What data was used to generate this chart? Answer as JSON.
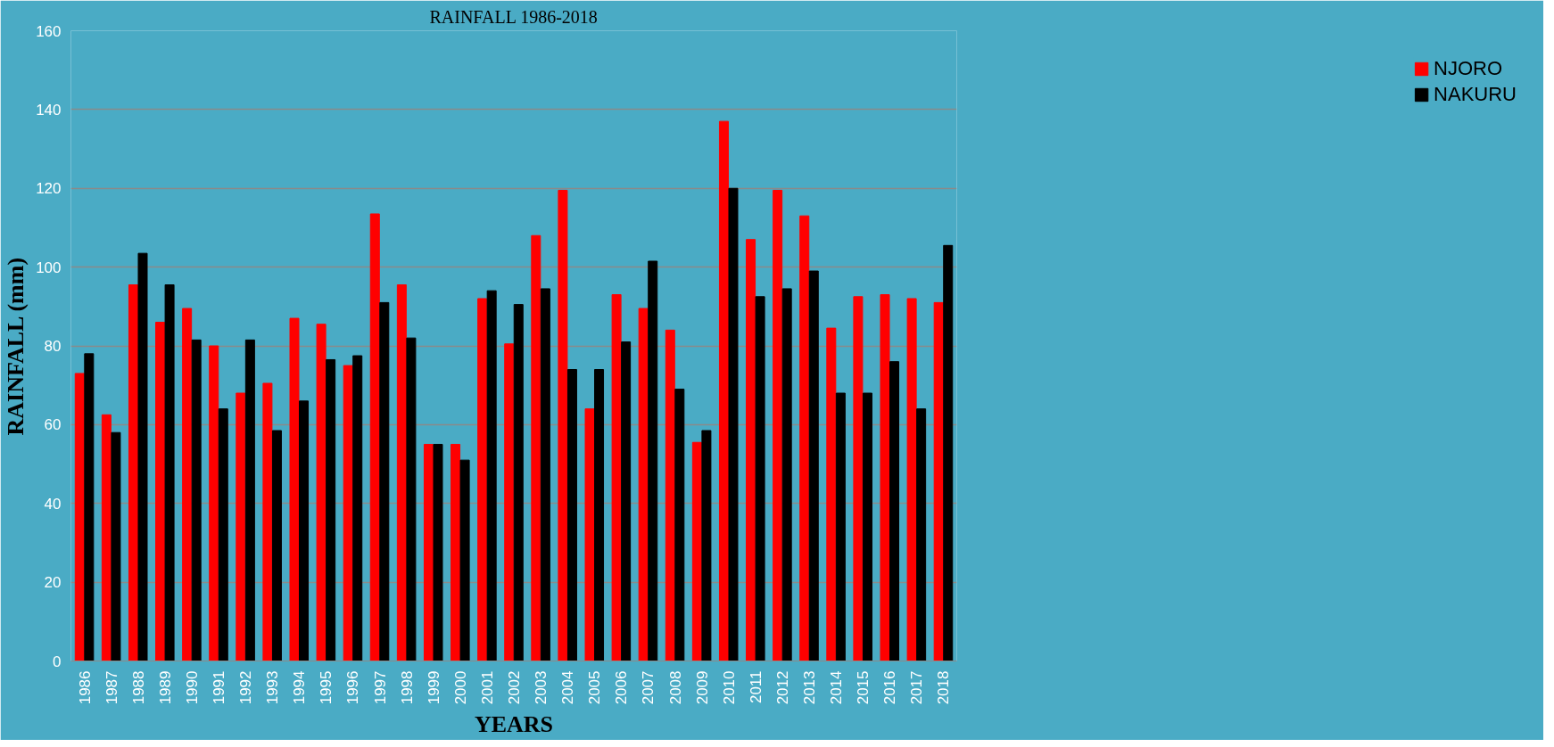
{
  "chart_data": {
    "type": "bar",
    "title": "RAINFALL 1986-2018",
    "xlabel": "YEARS",
    "ylabel": "RAINFALL (mm)",
    "categories": [
      "1986",
      "1987",
      "1988",
      "1989",
      "1990",
      "1991",
      "1992",
      "1993",
      "1994",
      "1995",
      "1996",
      "1997",
      "1998",
      "1999",
      "2000",
      "2001",
      "2002",
      "2003",
      "2004",
      "2005",
      "2006",
      "2007",
      "2008",
      "2009",
      "2010",
      "2011",
      "2012",
      "2013",
      "2014",
      "2015",
      "2016",
      "2017",
      "2018"
    ],
    "series": [
      {
        "name": "NJORO",
        "color": "#ff0000",
        "values": [
          73,
          62.5,
          95.5,
          86,
          89.5,
          80,
          68,
          70.5,
          87,
          85.5,
          75,
          113.5,
          95.5,
          55,
          55,
          92,
          80.5,
          108,
          119.5,
          64,
          93,
          89.5,
          84,
          55.5,
          137,
          107,
          119.5,
          113,
          84.5,
          92.5,
          93,
          92,
          91
        ]
      },
      {
        "name": "NAKURU",
        "color": "#000000",
        "values": [
          78,
          58,
          103.5,
          95.5,
          81.5,
          64,
          81.5,
          58.5,
          66,
          76.5,
          77.5,
          91,
          82,
          55,
          51,
          94,
          90.5,
          94.5,
          74,
          74,
          81,
          101.5,
          69,
          58.5,
          120,
          92.5,
          94.5,
          99,
          68,
          68,
          76,
          64,
          105.5
        ]
      }
    ],
    "ylim": [
      0,
      160
    ],
    "yticks": [
      0,
      20,
      40,
      60,
      80,
      100,
      120,
      140,
      160
    ],
    "grid": "y",
    "legend": "right"
  }
}
